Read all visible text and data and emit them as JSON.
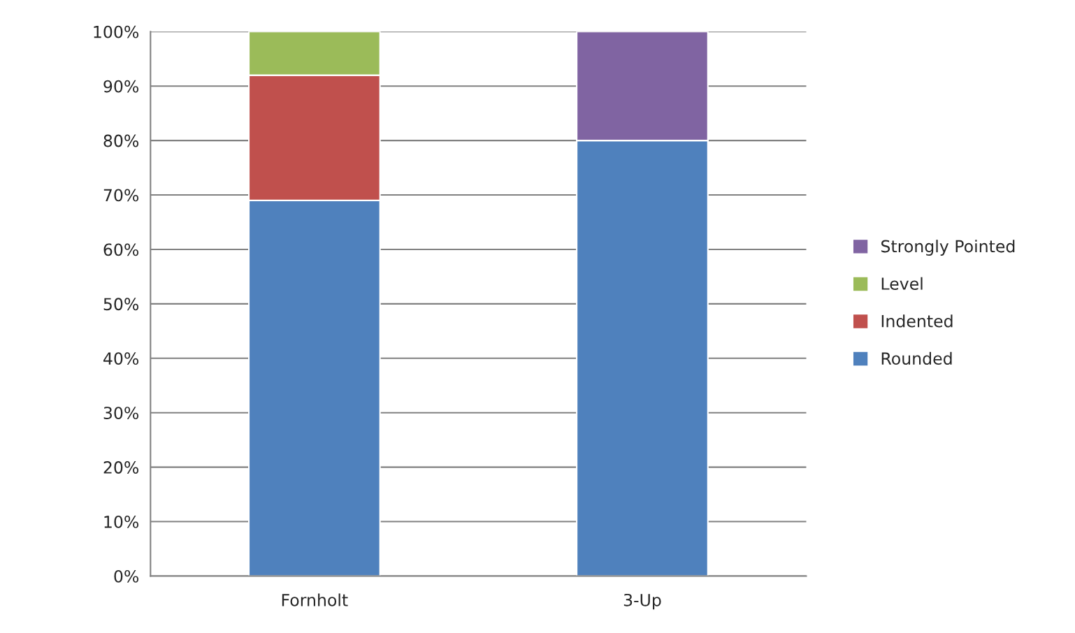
{
  "chart_data": {
    "type": "bar",
    "stacked": true,
    "categories": [
      "Fornholt",
      "3-Up"
    ],
    "series": [
      {
        "name": "Rounded",
        "color": "#4f81bd",
        "values": [
          69,
          80
        ]
      },
      {
        "name": "Indented",
        "color": "#c0504d",
        "values": [
          23,
          null
        ]
      },
      {
        "name": "Level",
        "color": "#9bbb59",
        "values": [
          8,
          null
        ]
      },
      {
        "name": "Strongly Pointed",
        "color": "#8064a2",
        "values": [
          null,
          20
        ]
      }
    ],
    "ylim": [
      0,
      100
    ],
    "yticks": [
      {
        "value": 0,
        "label": "0%"
      },
      {
        "value": 10,
        "label": "10%"
      },
      {
        "value": 20,
        "label": "20%"
      },
      {
        "value": 30,
        "label": "30%"
      },
      {
        "value": 40,
        "label": "40%"
      },
      {
        "value": 50,
        "label": "50%"
      },
      {
        "value": 60,
        "label": "60%"
      },
      {
        "value": 70,
        "label": "70%"
      },
      {
        "value": 80,
        "label": "80%"
      },
      {
        "value": 90,
        "label": "90%"
      },
      {
        "value": 100,
        "label": "100%"
      }
    ],
    "grid": "y",
    "legend": "right"
  }
}
